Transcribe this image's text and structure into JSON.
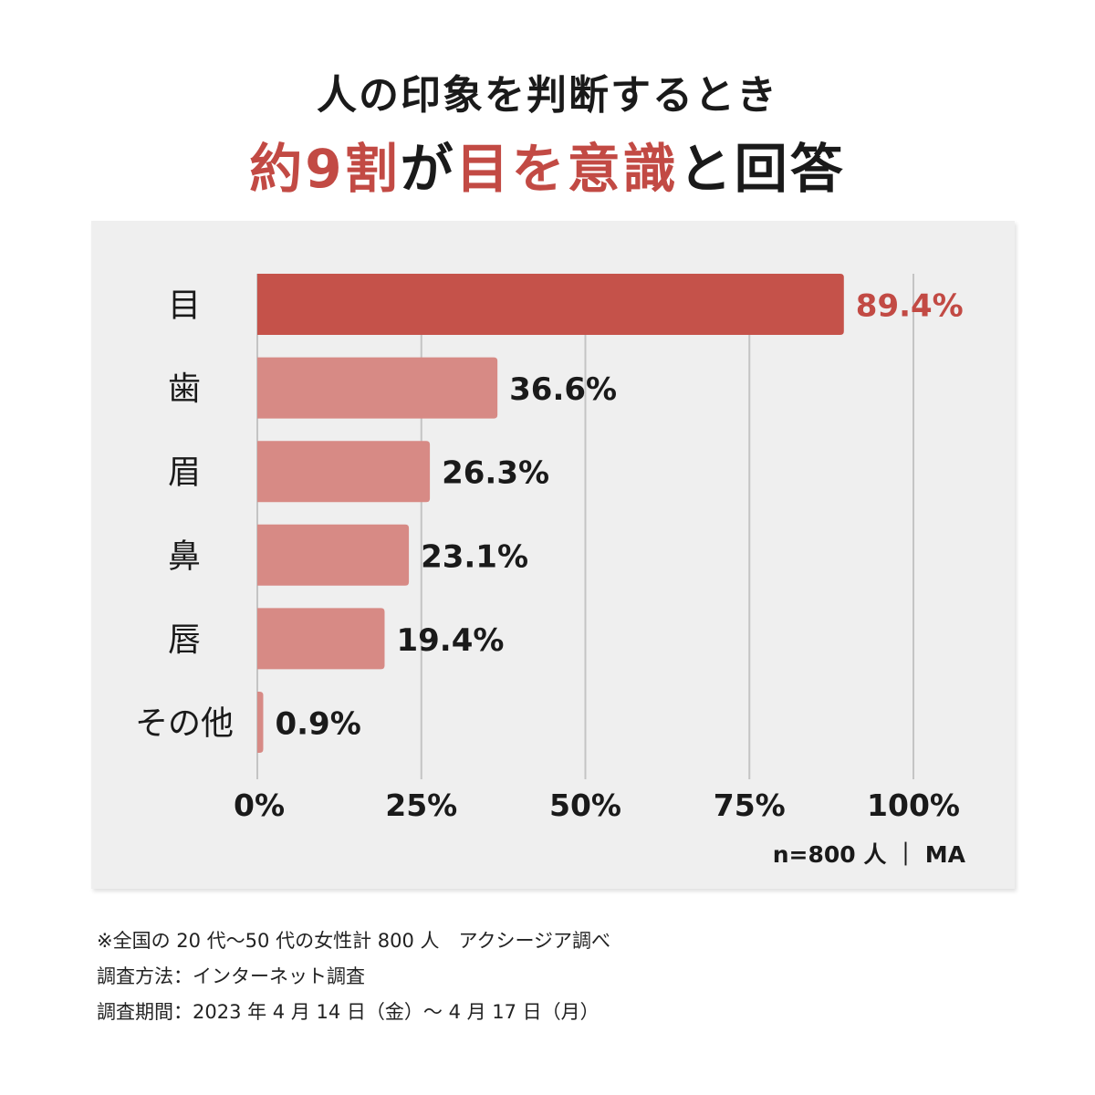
{
  "title": {
    "line1": "人の印象を判断するとき",
    "line2_parts": [
      {
        "text": "約9割",
        "color": "red"
      },
      {
        "text": "が",
        "color": "black"
      },
      {
        "text": "目を意識",
        "color": "red"
      },
      {
        "text": "と回答",
        "color": "black"
      }
    ]
  },
  "colors": {
    "accent": "#c5524a",
    "bar": "#d78a85",
    "highlight_label": "#c24a44",
    "panel": "#efefef",
    "grid": "#c4c4c4",
    "text": "#1a1a1a"
  },
  "chart_data": {
    "type": "bar",
    "orientation": "horizontal",
    "categories": [
      "目",
      "歯",
      "眉",
      "鼻",
      "唇",
      "その他"
    ],
    "values": [
      89.4,
      36.6,
      26.3,
      23.1,
      19.4,
      0.9
    ],
    "value_labels": [
      "89.4%",
      "36.6%",
      "26.3%",
      "23.1%",
      "19.4%",
      "0.9%"
    ],
    "highlight_index": 0,
    "xlim": [
      0,
      100
    ],
    "xticks": [
      0,
      25,
      50,
      75,
      100
    ],
    "xtick_labels": [
      "0%",
      "25%",
      "50%",
      "75%",
      "100%"
    ],
    "grid": true,
    "note": "n=800 人 ｜ MA"
  },
  "footer": {
    "line1": "※全国の 20 代〜50 代の女性計 800 人　アクシージア調べ",
    "line2": "調査方法：インターネット調査",
    "line3": "調査期間：2023 年 4 月 14 日（金）〜 4 月 17 日（月）"
  }
}
